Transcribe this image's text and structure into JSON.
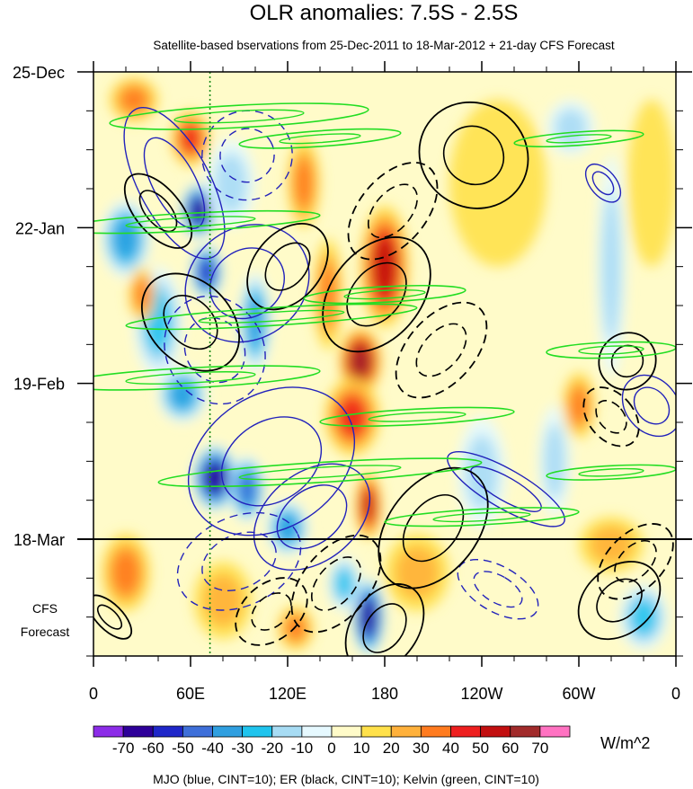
{
  "chart_data": {
    "type": "heatmap",
    "title": "OLR anomalies: 7.5S - 2.5S",
    "subtitle": "Satellite-based bservations from 25-Dec-2011 to 18-Mar-2012 + 21-day CFS Forecast",
    "x_ticks": [
      {
        "lon": 0,
        "label": "0"
      },
      {
        "lon": 60,
        "label": "60E"
      },
      {
        "lon": 120,
        "label": "120E"
      },
      {
        "lon": 180,
        "label": "180"
      },
      {
        "lon": 240,
        "label": "120W"
      },
      {
        "lon": 300,
        "label": "60W"
      },
      {
        "lon": 360,
        "label": "0"
      }
    ],
    "xlim": [
      0,
      360
    ],
    "y_ticks": [
      {
        "day": 0,
        "label": "25-Dec"
      },
      {
        "day": 28,
        "label": "22-Jan"
      },
      {
        "day": 56,
        "label": "19-Feb"
      },
      {
        "day": 84,
        "label": "18-Mar"
      }
    ],
    "ylim_days": [
      0,
      105
    ],
    "forecast_start_day": 84,
    "forecast_label_line1": "CFS",
    "forecast_label_line2": "Forecast",
    "reference_lon": 72,
    "colorbar": {
      "unit": "W/m^2",
      "labels": [
        "-70",
        "-60",
        "-50",
        "-40",
        "-30",
        "-20",
        "-10",
        "0",
        "10",
        "20",
        "30",
        "40",
        "50",
        "60",
        "70"
      ],
      "colors": [
        "#8c2ce8",
        "#2e0099",
        "#1f27c9",
        "#3e6fd9",
        "#2f9fe0",
        "#1fc4ee",
        "#a7dcf4",
        "#e6f9ff",
        "#fffbc9",
        "#ffe14a",
        "#ffb13b",
        "#ff7b1f",
        "#ee1f1f",
        "#c20f10",
        "#a12b2b",
        "#ff72c2"
      ]
    },
    "legend_note": "MJO (blue, CINT=10); ER (black, CINT=10); Kelvin (green, CINT=10)",
    "series": [
      {
        "name": "MJO",
        "color": "#2020c0"
      },
      {
        "name": "ER",
        "color": "#000000"
      },
      {
        "name": "Kelvin",
        "color": "#22dd22"
      }
    ],
    "anomaly_blobs": [
      {
        "lon": 20,
        "day": 30,
        "value": -40,
        "w": 30,
        "h": 14
      },
      {
        "lon": 40,
        "day": 45,
        "value": -30,
        "w": 30,
        "h": 20
      },
      {
        "lon": 65,
        "day": 25,
        "value": -70,
        "w": 22,
        "h": 10
      },
      {
        "lon": 70,
        "day": 36,
        "value": -60,
        "w": 20,
        "h": 10
      },
      {
        "lon": 55,
        "day": 58,
        "value": -40,
        "w": 30,
        "h": 10
      },
      {
        "lon": 75,
        "day": 73,
        "value": -70,
        "w": 28,
        "h": 12
      },
      {
        "lon": 95,
        "day": 75,
        "value": -50,
        "w": 22,
        "h": 12
      },
      {
        "lon": 100,
        "day": 45,
        "value": -40,
        "w": 20,
        "h": 18
      },
      {
        "lon": 120,
        "day": 82,
        "value": -40,
        "w": 26,
        "h": 10
      },
      {
        "lon": 170,
        "day": 98,
        "value": -70,
        "w": 20,
        "h": 14
      },
      {
        "lon": 155,
        "day": 92,
        "value": -30,
        "w": 20,
        "h": 10
      },
      {
        "lon": 85,
        "day": 20,
        "value": -20,
        "w": 30,
        "h": 16
      },
      {
        "lon": 240,
        "day": 72,
        "value": -20,
        "w": 30,
        "h": 20
      },
      {
        "lon": 285,
        "day": 70,
        "value": -20,
        "w": 20,
        "h": 20
      },
      {
        "lon": 320,
        "day": 35,
        "value": -20,
        "w": 18,
        "h": 40
      },
      {
        "lon": 340,
        "day": 98,
        "value": -30,
        "w": 30,
        "h": 12
      },
      {
        "lon": 295,
        "day": 10,
        "value": -20,
        "w": 30,
        "h": 10
      },
      {
        "lon": 180,
        "day": 35,
        "value": 50,
        "w": 30,
        "h": 22
      },
      {
        "lon": 165,
        "day": 52,
        "value": 60,
        "w": 26,
        "h": 12
      },
      {
        "lon": 160,
        "day": 62,
        "value": 40,
        "w": 34,
        "h": 14
      },
      {
        "lon": 170,
        "day": 78,
        "value": 50,
        "w": 16,
        "h": 12
      },
      {
        "lon": 145,
        "day": 40,
        "value": 30,
        "w": 18,
        "h": 20
      },
      {
        "lon": 130,
        "day": 20,
        "value": 30,
        "w": 20,
        "h": 16
      },
      {
        "lon": 25,
        "day": 5,
        "value": 30,
        "w": 30,
        "h": 8
      },
      {
        "lon": 60,
        "day": 12,
        "value": 40,
        "w": 24,
        "h": 10
      },
      {
        "lon": 30,
        "day": 40,
        "value": 30,
        "w": 16,
        "h": 10
      },
      {
        "lon": 20,
        "day": 90,
        "value": 30,
        "w": 30,
        "h": 14
      },
      {
        "lon": 80,
        "day": 95,
        "value": 20,
        "w": 36,
        "h": 14
      },
      {
        "lon": 125,
        "day": 100,
        "value": 30,
        "w": 22,
        "h": 8
      },
      {
        "lon": 200,
        "day": 90,
        "value": 20,
        "w": 40,
        "h": 14
      },
      {
        "lon": 300,
        "day": 60,
        "value": 30,
        "w": 20,
        "h": 12
      },
      {
        "lon": 320,
        "day": 85,
        "value": 20,
        "w": 40,
        "h": 10
      },
      {
        "lon": 250,
        "day": 20,
        "value": 10,
        "w": 60,
        "h": 30
      },
      {
        "lon": 345,
        "day": 20,
        "value": 10,
        "w": 30,
        "h": 30
      }
    ],
    "contours": {
      "mjo": [
        {
          "lon": 50,
          "day": 20,
          "rlon": 22,
          "rday": 15,
          "tilt": -28,
          "sign": 1
        },
        {
          "lon": 95,
          "day": 38,
          "rlon": 40,
          "rday": 10,
          "tilt": -35,
          "sign": 1
        },
        {
          "lon": 110,
          "day": 70,
          "rlon": 55,
          "rday": 12,
          "tilt": -33,
          "sign": 1
        },
        {
          "lon": 135,
          "day": 80,
          "rlon": 40,
          "rday": 8,
          "tilt": -38,
          "sign": 1
        },
        {
          "lon": 95,
          "day": 15,
          "rlon": 28,
          "rday": 8,
          "tilt": -30,
          "sign": -1
        },
        {
          "lon": 75,
          "day": 50,
          "rlon": 30,
          "rday": 10,
          "tilt": -30,
          "sign": -1
        },
        {
          "lon": 90,
          "day": 88,
          "rlon": 40,
          "rday": 8,
          "tilt": -25,
          "sign": -1
        },
        {
          "lon": 255,
          "day": 75,
          "rlon": 12,
          "rday": 12,
          "tilt": -60,
          "sign": 1
        },
        {
          "lon": 250,
          "day": 93,
          "rlon": 14,
          "rday": 8,
          "tilt": -60,
          "sign": -1
        },
        {
          "lon": 345,
          "day": 60,
          "rlon": 16,
          "rday": 6,
          "tilt": -40,
          "sign": 1
        },
        {
          "lon": 315,
          "day": 20,
          "rlon": 8,
          "rday": 4,
          "tilt": -40,
          "sign": 1
        }
      ],
      "er": [
        {
          "lon": 235,
          "day": 15,
          "rlon": 32,
          "rday": 10,
          "tilt": -55,
          "sign": 1
        },
        {
          "lon": 120,
          "day": 35,
          "rlon": 30,
          "rday": 6,
          "tilt": -50,
          "sign": 1
        },
        {
          "lon": 175,
          "day": 40,
          "rlon": 40,
          "rday": 8,
          "tilt": -50,
          "sign": 1
        },
        {
          "lon": 60,
          "day": 45,
          "rlon": 25,
          "rday": 10,
          "tilt": -45,
          "sign": 1
        },
        {
          "lon": 210,
          "day": 82,
          "rlon": 42,
          "rday": 8,
          "tilt": -52,
          "sign": 1
        },
        {
          "lon": 180,
          "day": 100,
          "rlon": 30,
          "rday": 6,
          "tilt": -55,
          "sign": 1
        },
        {
          "lon": 325,
          "day": 95,
          "rlon": 28,
          "rday": 6,
          "tilt": -40,
          "sign": 1
        },
        {
          "lon": 330,
          "day": 52,
          "rlon": 18,
          "rday": 5,
          "tilt": -45,
          "sign": 1
        },
        {
          "lon": 40,
          "day": 25,
          "rlon": 14,
          "rday": 8,
          "tilt": -40,
          "sign": 1
        },
        {
          "lon": 10,
          "day": 98,
          "rlon": 8,
          "rday": 5,
          "tilt": -45,
          "sign": 1
        },
        {
          "lon": 185,
          "day": 25,
          "rlon": 35,
          "rday": 6,
          "tilt": -50,
          "sign": -1
        },
        {
          "lon": 215,
          "day": 50,
          "rlon": 35,
          "rday": 6,
          "tilt": -48,
          "sign": -1
        },
        {
          "lon": 150,
          "day": 92,
          "rlon": 35,
          "rday": 6,
          "tilt": -50,
          "sign": -1
        },
        {
          "lon": 320,
          "day": 62,
          "rlon": 14,
          "rday": 6,
          "tilt": -40,
          "sign": -1
        },
        {
          "lon": 335,
          "day": 88,
          "rlon": 28,
          "rday": 5,
          "tilt": -45,
          "sign": -1
        },
        {
          "lon": 110,
          "day": 97,
          "rlon": 25,
          "rday": 5,
          "tilt": -40,
          "sign": -1
        }
      ],
      "kelvin": [
        {
          "lon": 90,
          "day": 8,
          "rlon": 80,
          "rday": 2,
          "tilt": -3
        },
        {
          "lon": 140,
          "day": 12,
          "rlon": 50,
          "rday": 1.4,
          "tilt": -4
        },
        {
          "lon": 60,
          "day": 27,
          "rlon": 80,
          "rday": 1.6,
          "tilt": -3
        },
        {
          "lon": 180,
          "day": 40,
          "rlon": 50,
          "rday": 1.4,
          "tilt": -3
        },
        {
          "lon": 110,
          "day": 44,
          "rlon": 90,
          "rday": 1.6,
          "tilt": -3.5
        },
        {
          "lon": 60,
          "day": 55,
          "rlon": 80,
          "rday": 1.8,
          "tilt": -3
        },
        {
          "lon": 200,
          "day": 62,
          "rlon": 60,
          "rday": 1.4,
          "tilt": -3
        },
        {
          "lon": 140,
          "day": 72,
          "rlon": 100,
          "rday": 1.8,
          "tilt": -3.5
        },
        {
          "lon": 240,
          "day": 80,
          "rlon": 60,
          "rday": 1.4,
          "tilt": -3
        },
        {
          "lon": 320,
          "day": 50,
          "rlon": 40,
          "rday": 1.4,
          "tilt": -2
        },
        {
          "lon": 300,
          "day": 12,
          "rlon": 40,
          "rday": 1.2,
          "tilt": -4
        },
        {
          "lon": 320,
          "day": 72,
          "rlon": 40,
          "rday": 1.2,
          "tilt": -3
        }
      ]
    }
  }
}
